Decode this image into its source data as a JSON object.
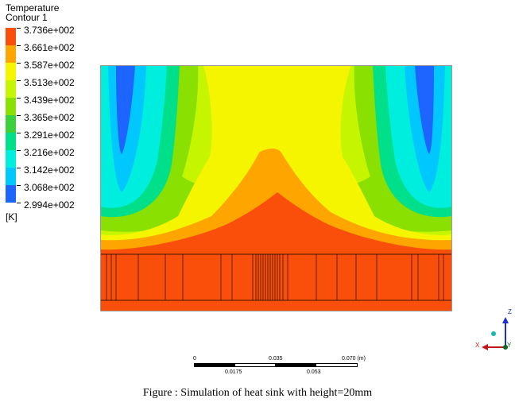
{
  "legend": {
    "title": "Temperature",
    "subtitle": "Contour 1",
    "unit": "[K]",
    "levels": [
      {
        "label": "3.736e+002",
        "color": "#fa4f0b"
      },
      {
        "label": "3.661e+002",
        "color": "#ffa500"
      },
      {
        "label": "3.587e+002",
        "color": "#f6f500"
      },
      {
        "label": "3.513e+002",
        "color": "#c6f500"
      },
      {
        "label": "3.439e+002",
        "color": "#8ae000"
      },
      {
        "label": "3.365e+002",
        "color": "#3cd13c"
      },
      {
        "label": "3.291e+002",
        "color": "#00e08a"
      },
      {
        "label": "3.216e+002",
        "color": "#00eedd"
      },
      {
        "label": "3.142e+002",
        "color": "#00c8ff"
      },
      {
        "label": "3.068e+002",
        "color": "#1e64ff"
      },
      {
        "label": "2.994e+002",
        "color": ""
      }
    ]
  },
  "scale_bar": {
    "top_labels": [
      "0",
      "0.035",
      "0.070 (m)"
    ],
    "bottom_labels": [
      "0.0175",
      "0.053"
    ]
  },
  "axes": {
    "z": "Z",
    "x": "X",
    "y": "Y"
  },
  "caption": "Figure : Simulation of heat sink with height=20mm"
}
